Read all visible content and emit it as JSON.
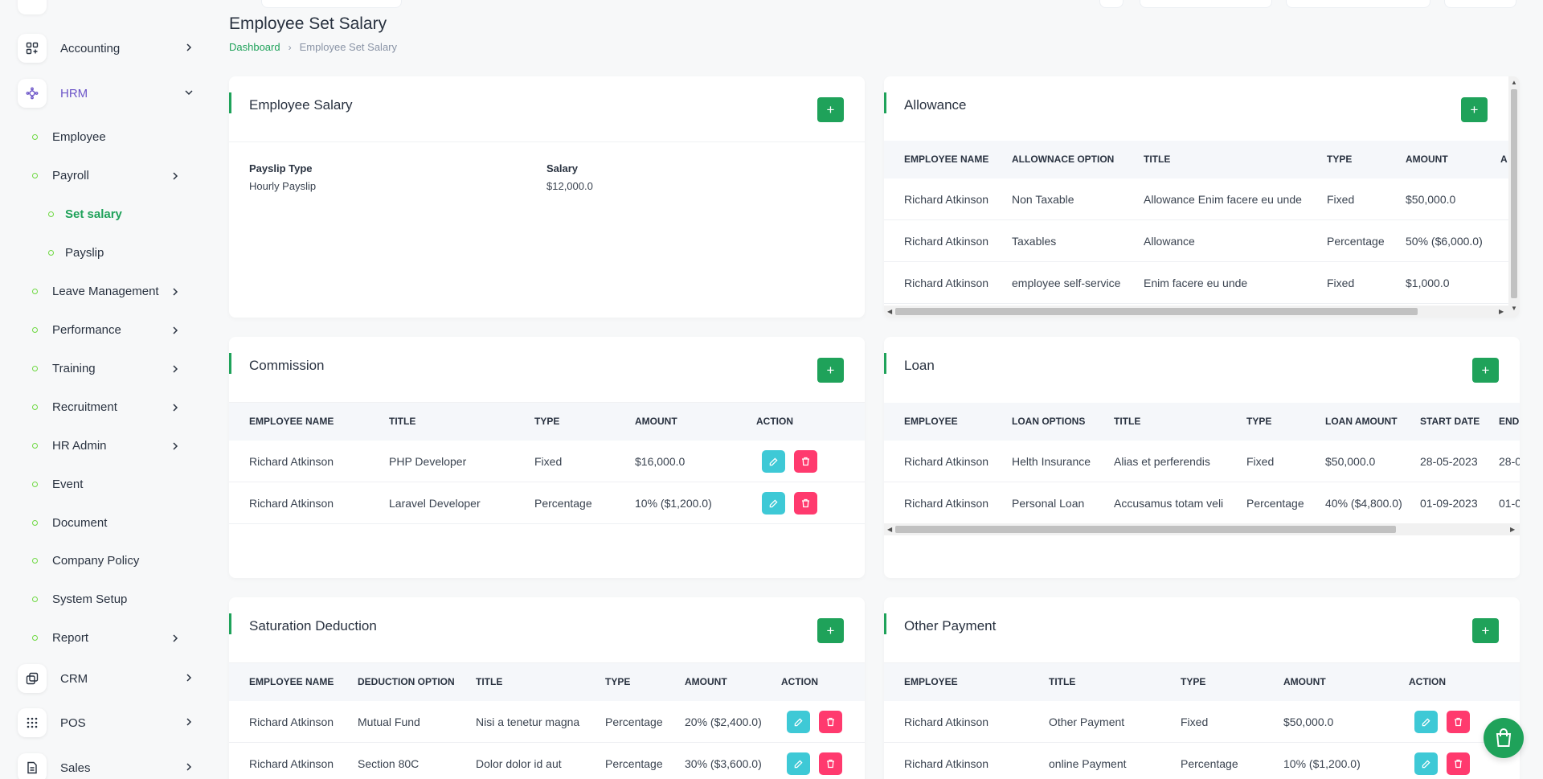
{
  "sidebar": {
    "accounting": "Accounting",
    "hrm": "HRM",
    "employee": "Employee",
    "payroll": "Payroll",
    "set_salary": "Set salary",
    "payslip": "Payslip",
    "leave_management": "Leave Management",
    "performance": "Performance",
    "training": "Training",
    "recruitment": "Recruitment",
    "hr_admin": "HR Admin",
    "event": "Event",
    "document": "Document",
    "company_policy": "Company Policy",
    "system_setup": "System Setup",
    "report": "Report",
    "crm": "CRM",
    "pos": "POS",
    "sales": "Sales"
  },
  "page": {
    "title": "Employee Set Salary",
    "breadcrumb_home": "Dashboard",
    "breadcrumb_current": "Employee Set Salary"
  },
  "employee_salary": {
    "title": "Employee Salary",
    "add_label": "+",
    "payslip_type_label": "Payslip Type",
    "payslip_type_value": "Hourly Payslip",
    "salary_label": "Salary",
    "salary_value": "$12,000.0"
  },
  "allowance": {
    "title": "Allowance",
    "add_label": "+",
    "columns": [
      "EMPLOYEE NAME",
      "ALLOWNACE OPTION",
      "TITLE",
      "TYPE",
      "AMOUNT",
      "A"
    ],
    "rows": [
      [
        "Richard Atkinson",
        "Non Taxable",
        "Allowance Enim facere eu unde",
        "Fixed",
        "$50,000.0"
      ],
      [
        "Richard Atkinson",
        "Taxables",
        "Allowance",
        "Percentage",
        "50% ($6,000.0)"
      ],
      [
        "Richard Atkinson",
        "employee self-service",
        "Enim facere eu unde",
        "Fixed",
        "$1,000.0"
      ]
    ]
  },
  "commission": {
    "title": "Commission",
    "add_label": "+",
    "columns": [
      "EMPLOYEE NAME",
      "TITLE",
      "TYPE",
      "AMOUNT",
      "ACTION"
    ],
    "rows": [
      [
        "Richard Atkinson",
        "PHP Developer",
        "Fixed",
        "$16,000.0"
      ],
      [
        "Richard Atkinson",
        "Laravel Developer",
        "Percentage",
        "10% ($1,200.0)"
      ]
    ]
  },
  "loan": {
    "title": "Loan",
    "add_label": "+",
    "columns": [
      "EMPLOYEE",
      "LOAN OPTIONS",
      "TITLE",
      "TYPE",
      "LOAN AMOUNT",
      "START DATE",
      "END"
    ],
    "rows": [
      [
        "Richard Atkinson",
        "Helth Insurance",
        "Alias et perferendis",
        "Fixed",
        "$50,000.0",
        "28-05-2023",
        "28-0"
      ],
      [
        "Richard Atkinson",
        "Personal Loan",
        "Accusamus totam veli",
        "Percentage",
        "40% ($4,800.0)",
        "01-09-2023",
        "01-0"
      ]
    ]
  },
  "saturation_deduction": {
    "title": "Saturation Deduction",
    "add_label": "+",
    "columns": [
      "EMPLOYEE NAME",
      "DEDUCTION OPTION",
      "TITLE",
      "TYPE",
      "AMOUNT",
      "ACTION"
    ],
    "rows": [
      [
        "Richard Atkinson",
        "Mutual Fund",
        "Nisi a tenetur magna",
        "Percentage",
        "20% ($2,400.0)"
      ],
      [
        "Richard Atkinson",
        "Section 80C",
        "Dolor dolor id aut",
        "Percentage",
        "30% ($3,600.0)"
      ]
    ]
  },
  "other_payment": {
    "title": "Other Payment",
    "add_label": "+",
    "columns": [
      "EMPLOYEE",
      "TITLE",
      "TYPE",
      "AMOUNT",
      "ACTION"
    ],
    "rows": [
      [
        "Richard Atkinson",
        "Other Payment",
        "Fixed",
        "$50,000.0"
      ],
      [
        "Richard Atkinson",
        "online Payment",
        "Percentage",
        "10% ($1,200.0)"
      ]
    ]
  },
  "colors": {
    "primary": "#1fa25a",
    "edit": "#3ec9d6",
    "delete": "#ff3a6e",
    "hrm_active": "#6c55c8"
  },
  "icons": [
    "accounting-icon",
    "hrm-icon",
    "crm-icon",
    "pos-icon",
    "sales-icon",
    "pencil-icon",
    "trash-icon",
    "shopping-bag-icon",
    "chevron-right-icon",
    "chevron-down-icon"
  ]
}
